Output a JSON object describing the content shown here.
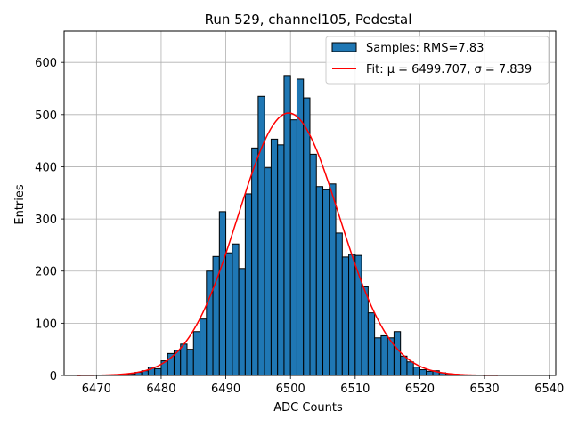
{
  "chart_data": {
    "type": "bar",
    "title": "Run 529, channel105, Pedestal",
    "xlabel": "ADC Counts",
    "ylabel": "Entries",
    "xlim": [
      6465,
      6541
    ],
    "ylim": [
      0,
      660
    ],
    "grid": true,
    "x_ticks": [
      6470,
      6480,
      6490,
      6500,
      6510,
      6520,
      6530,
      6540
    ],
    "y_ticks": [
      0,
      100,
      200,
      300,
      400,
      500,
      600
    ],
    "bin_width": 1,
    "bins_start": [
      6474,
      6475,
      6476,
      6477,
      6478,
      6479,
      6480,
      6481,
      6482,
      6483,
      6484,
      6485,
      6486,
      6487,
      6488,
      6489,
      6490,
      6491,
      6492,
      6493,
      6494,
      6495,
      6496,
      6497,
      6498,
      6499,
      6500,
      6501,
      6502,
      6503,
      6504,
      6505,
      6506,
      6507,
      6508,
      6509,
      6510,
      6511,
      6512,
      6513,
      6514,
      6515,
      6516,
      6517,
      6518,
      6519,
      6520,
      6521,
      6522,
      6523,
      6524,
      6525
    ],
    "counts": [
      2,
      3,
      6,
      9,
      16,
      13,
      28,
      42,
      48,
      60,
      50,
      84,
      108,
      200,
      228,
      314,
      235,
      252,
      205,
      348,
      436,
      535,
      398,
      453,
      442,
      575,
      490,
      568,
      532,
      424,
      362,
      356,
      367,
      273,
      227,
      232,
      230,
      170,
      120,
      72,
      76,
      72,
      84,
      37,
      26,
      16,
      11,
      8,
      9,
      5,
      3,
      2
    ],
    "bar_color": "#1f77b4",
    "bar_edge_color": "#000000",
    "fit": {
      "mu": 6499.707,
      "sigma": 7.839,
      "amplitude": 503,
      "x_range": [
        6467,
        6532
      ],
      "color": "#ff0000"
    },
    "legend": {
      "location": "top-right",
      "entries": [
        {
          "label": "Samples: RMS=7.83",
          "kind": "patch",
          "color": "#1f77b4"
        },
        {
          "label": "Fit: μ = 6499.707, σ = 7.839",
          "kind": "line",
          "color": "#ff0000"
        }
      ]
    }
  }
}
